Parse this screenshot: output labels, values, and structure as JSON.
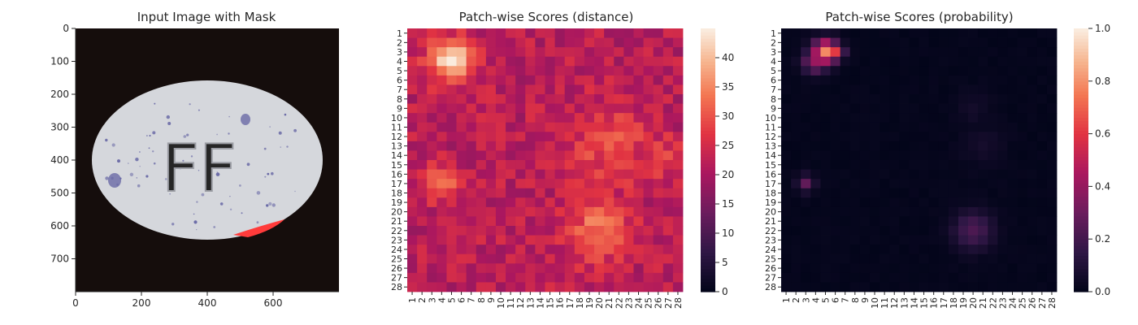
{
  "chart_data": [
    {
      "type": "image",
      "title": "Input Image with Mask",
      "xlim": [
        0,
        800
      ],
      "ylim": [
        800,
        0
      ],
      "xticks": [
        0,
        200,
        400,
        600
      ],
      "yticks": [
        0,
        100,
        200,
        300,
        400,
        500,
        600,
        700
      ],
      "content": {
        "background_color": "#150d0c",
        "object": "white oval pill with purple speckles",
        "object_color": "#d5d7dc",
        "speckle_color": "#6a6aa6",
        "imprint": "FF",
        "mask_region": "red crescent on lower-right edge of pill",
        "mask_color": "#ff3b3b"
      }
    },
    {
      "type": "heatmap",
      "title": "Patch-wise Scores (distance)",
      "colormap": "rocket",
      "x_categories": [
        "1",
        "2",
        "3",
        "4",
        "5",
        "6",
        "7",
        "8",
        "9",
        "10",
        "11",
        "12",
        "13",
        "14",
        "15",
        "16",
        "17",
        "18",
        "19",
        "20",
        "21",
        "22",
        "23",
        "24",
        "25",
        "26",
        "27",
        "28"
      ],
      "y_categories": [
        "1",
        "2",
        "3",
        "4",
        "5",
        "6",
        "7",
        "8",
        "9",
        "10",
        "11",
        "12",
        "13",
        "14",
        "15",
        "16",
        "17",
        "18",
        "19",
        "20",
        "21",
        "22",
        "23",
        "24",
        "25",
        "26",
        "27",
        "28"
      ],
      "colorbar": {
        "min": 0,
        "max": 45,
        "ticks": [
          "0",
          "5",
          "10",
          "15",
          "20",
          "25",
          "30",
          "35",
          "40"
        ]
      },
      "base_value": 22,
      "hotspots": [
        {
          "row": 4,
          "col": 5,
          "peak": 44,
          "spread": 1.6
        },
        {
          "row": 17,
          "col": 4,
          "peak": 33,
          "spread": 1.2
        },
        {
          "row": 22,
          "col": 20,
          "peak": 34,
          "spread": 2.2
        },
        {
          "row": 13,
          "col": 21,
          "peak": 29,
          "spread": 3.0
        },
        {
          "row": 14,
          "col": 26,
          "peak": 29,
          "spread": 1.5
        }
      ]
    },
    {
      "type": "heatmap",
      "title": "Patch-wise Scores (probability)",
      "colormap": "rocket",
      "x_categories": [
        "1",
        "2",
        "3",
        "4",
        "5",
        "6",
        "7",
        "8",
        "9",
        "10",
        "11",
        "12",
        "13",
        "14",
        "15",
        "16",
        "17",
        "18",
        "19",
        "20",
        "21",
        "22",
        "23",
        "24",
        "25",
        "26",
        "27",
        "28"
      ],
      "y_categories": [
        "1",
        "2",
        "3",
        "4",
        "5",
        "6",
        "7",
        "8",
        "9",
        "10",
        "11",
        "12",
        "13",
        "14",
        "15",
        "16",
        "17",
        "18",
        "19",
        "20",
        "21",
        "22",
        "23",
        "24",
        "25",
        "26",
        "27",
        "28"
      ],
      "colorbar": {
        "min": 0,
        "max": 1.0,
        "ticks": [
          "0.0",
          "0.2",
          "0.4",
          "0.6",
          "0.8",
          "1.0"
        ]
      },
      "base_value": 0,
      "hotspots": [
        {
          "row": 3,
          "col": 5,
          "peak": 0.78,
          "spread": 0.9
        },
        {
          "row": 4,
          "col": 4,
          "peak": 0.4,
          "spread": 0.9
        },
        {
          "row": 3,
          "col": 6,
          "peak": 0.6,
          "spread": 0.6
        },
        {
          "row": 17,
          "col": 3,
          "peak": 0.26,
          "spread": 0.6
        },
        {
          "row": 22,
          "col": 20,
          "peak": 0.22,
          "spread": 1.4
        },
        {
          "row": 9,
          "col": 20,
          "peak": 0.05,
          "spread": 1.2
        },
        {
          "row": 13,
          "col": 21,
          "peak": 0.05,
          "spread": 1.5
        }
      ]
    }
  ]
}
